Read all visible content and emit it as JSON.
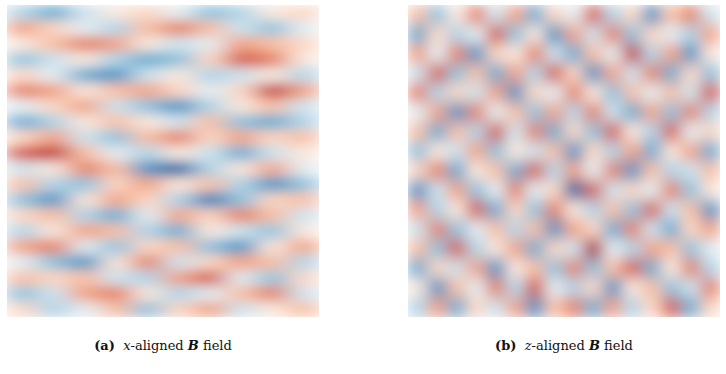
{
  "chart_data": [
    {
      "type": "heatmap",
      "label": "(a)",
      "title": "x-aligned B field",
      "tick_labels": false,
      "zlim": [
        -1,
        1
      ],
      "cells": [
        [
          -0.3,
          -0.5,
          -0.2,
          0.1,
          0.2,
          -0.1,
          -0.4,
          -0.3,
          0.1,
          0.2
        ],
        [
          0.4,
          0.2,
          -0.1,
          -0.3,
          0.3,
          0.5,
          0.3,
          -0.2,
          -0.4,
          -0.1
        ],
        [
          0.1,
          0.3,
          0.5,
          0.4,
          0.1,
          -0.2,
          -0.1,
          0.4,
          0.3,
          0.2
        ],
        [
          -0.4,
          -0.2,
          0.1,
          -0.3,
          -0.5,
          -0.4,
          0.2,
          0.6,
          0.5,
          0.1
        ],
        [
          0.2,
          -0.1,
          -0.5,
          -0.6,
          -0.2,
          0.1,
          -0.3,
          -0.2,
          0.1,
          -0.3
        ],
        [
          0.5,
          0.4,
          0.1,
          0.3,
          0.4,
          0.2,
          -0.1,
          0.2,
          0.7,
          0.4
        ],
        [
          -0.1,
          0.2,
          0.4,
          -0.2,
          -0.4,
          -0.6,
          -0.3,
          0.1,
          0.3,
          -0.2
        ],
        [
          -0.5,
          -0.3,
          0.1,
          0.3,
          0.1,
          -0.2,
          0.3,
          -0.4,
          -0.5,
          -0.3
        ],
        [
          0.2,
          0.4,
          -0.2,
          -0.4,
          0.3,
          0.5,
          0.2,
          0.4,
          0.2,
          0.3
        ],
        [
          0.6,
          0.7,
          0.3,
          -0.1,
          -0.3,
          0.1,
          -0.2,
          -0.5,
          -0.2,
          0.1
        ],
        [
          -0.2,
          0.1,
          0.5,
          0.3,
          -0.6,
          -0.8,
          -0.3,
          0.1,
          0.4,
          -0.1
        ],
        [
          0.3,
          -0.3,
          -0.4,
          0.2,
          0.4,
          0.1,
          0.3,
          -0.3,
          -0.6,
          -0.4
        ],
        [
          -0.4,
          -0.6,
          0.1,
          0.4,
          0.2,
          -0.3,
          -0.7,
          -0.4,
          0.2,
          0.3
        ],
        [
          0.2,
          0.3,
          -0.3,
          -0.5,
          -0.1,
          0.4,
          0.2,
          0.5,
          0.3,
          -0.2
        ],
        [
          -0.3,
          0.1,
          0.4,
          0.3,
          -0.3,
          -0.5,
          0.1,
          -0.2,
          -0.4,
          0.1
        ],
        [
          0.4,
          0.5,
          -0.1,
          -0.4,
          0.2,
          0.3,
          -0.4,
          -0.6,
          0.1,
          0.4
        ],
        [
          -0.1,
          -0.4,
          -0.6,
          0.1,
          0.5,
          -0.2,
          0.2,
          0.4,
          0.3,
          -0.3
        ],
        [
          0.3,
          0.2,
          0.3,
          -0.2,
          -0.3,
          0.4,
          0.6,
          -0.1,
          -0.4,
          0.2
        ],
        [
          -0.4,
          -0.2,
          0.4,
          0.5,
          0.1,
          -0.3,
          -0.1,
          0.3,
          0.5,
          -0.2
        ],
        [
          0.2,
          -0.3,
          -0.1,
          0.3,
          -0.4,
          0.2,
          0.4,
          -0.2,
          0.1,
          0.3
        ]
      ]
    },
    {
      "type": "heatmap",
      "label": "(b)",
      "title": "z-aligned B field",
      "tick_labels": false,
      "zlim": [
        -1,
        1
      ],
      "cells": [
        [
          0.3,
          -0.4,
          0.1,
          0.5,
          -0.2,
          0.4,
          -0.5,
          0.2,
          -0.1,
          0.6,
          -0.3,
          0.2,
          -0.6,
          0.3,
          0.5,
          -0.2
        ],
        [
          -0.5,
          0.2,
          -0.3,
          -0.1,
          0.6,
          -0.4,
          0.1,
          -0.6,
          0.4,
          -0.2,
          0.5,
          -0.4,
          0.2,
          -0.1,
          -0.3,
          0.4
        ],
        [
          0.4,
          -0.1,
          0.5,
          -0.6,
          0.2,
          0.1,
          0.5,
          -0.2,
          -0.5,
          0.3,
          -0.1,
          0.7,
          -0.3,
          0.4,
          -0.6,
          0.1
        ],
        [
          -0.2,
          0.6,
          -0.4,
          0.3,
          -0.5,
          0.4,
          -0.3,
          0.6,
          0.2,
          -0.6,
          0.4,
          -0.2,
          0.5,
          -0.5,
          0.2,
          -0.4
        ],
        [
          0.5,
          -0.3,
          0.2,
          -0.2,
          0.4,
          -0.6,
          0.2,
          -0.1,
          0.5,
          0.1,
          -0.4,
          0.3,
          -0.1,
          0.3,
          -0.2,
          0.6
        ],
        [
          -0.1,
          0.4,
          -0.6,
          0.5,
          -0.1,
          0.3,
          -0.4,
          0.4,
          -0.3,
          0.5,
          -0.2,
          -0.5,
          0.4,
          -0.4,
          0.5,
          -0.3
        ],
        [
          0.3,
          -0.5,
          0.3,
          -0.3,
          0.6,
          -0.2,
          0.5,
          -0.5,
          0.2,
          -0.4,
          0.6,
          0.1,
          -0.3,
          0.6,
          -0.1,
          0.2
        ],
        [
          -0.4,
          0.1,
          -0.2,
          0.4,
          -0.4,
          0.1,
          -0.2,
          0.3,
          -0.6,
          0.2,
          -0.3,
          0.4,
          -0.5,
          0.1,
          0.4,
          -0.5
        ],
        [
          0.2,
          0.5,
          -0.5,
          0.1,
          0.3,
          -0.5,
          0.6,
          -0.3,
          0.4,
          -0.1,
          0.5,
          -0.6,
          0.3,
          -0.3,
          -0.2,
          0.3
        ],
        [
          -0.6,
          -0.2,
          0.4,
          -0.4,
          -0.1,
          0.5,
          -0.1,
          0.2,
          -0.8,
          0.6,
          -0.2,
          0.2,
          -0.1,
          0.5,
          -0.4,
          0.1
        ],
        [
          0.4,
          -0.3,
          0.1,
          0.6,
          -0.5,
          0.2,
          -0.4,
          0.5,
          0.1,
          -0.3,
          0.3,
          -0.4,
          0.6,
          -0.2,
          0.3,
          -0.6
        ],
        [
          -0.2,
          0.5,
          -0.4,
          -0.1,
          0.3,
          -0.3,
          0.3,
          -0.6,
          0.4,
          0.2,
          -0.5,
          0.5,
          -0.2,
          -0.5,
          0.2,
          0.4
        ],
        [
          0.3,
          -0.4,
          0.6,
          -0.3,
          0.1,
          0.4,
          -0.5,
          0.2,
          -0.2,
          0.8,
          -0.1,
          -0.3,
          0.4,
          0.3,
          -0.4,
          -0.1
        ],
        [
          -0.5,
          0.2,
          -0.2,
          0.4,
          -0.6,
          0.1,
          0.3,
          -0.4,
          0.5,
          -0.4,
          0.3,
          0.6,
          -0.5,
          0.1,
          0.5,
          -0.3
        ],
        [
          0.1,
          -0.6,
          0.3,
          -0.1,
          0.5,
          -0.3,
          0.6,
          -0.1,
          -0.3,
          0.2,
          -0.6,
          0.1,
          0.3,
          -0.4,
          -0.2,
          0.5
        ],
        [
          -0.3,
          0.4,
          -0.5,
          0.2,
          -0.2,
          0.4,
          -0.6,
          0.3,
          0.5,
          -0.5,
          0.4,
          -0.3,
          0.2,
          0.6,
          -0.5,
          0.2
        ]
      ]
    }
  ]
}
